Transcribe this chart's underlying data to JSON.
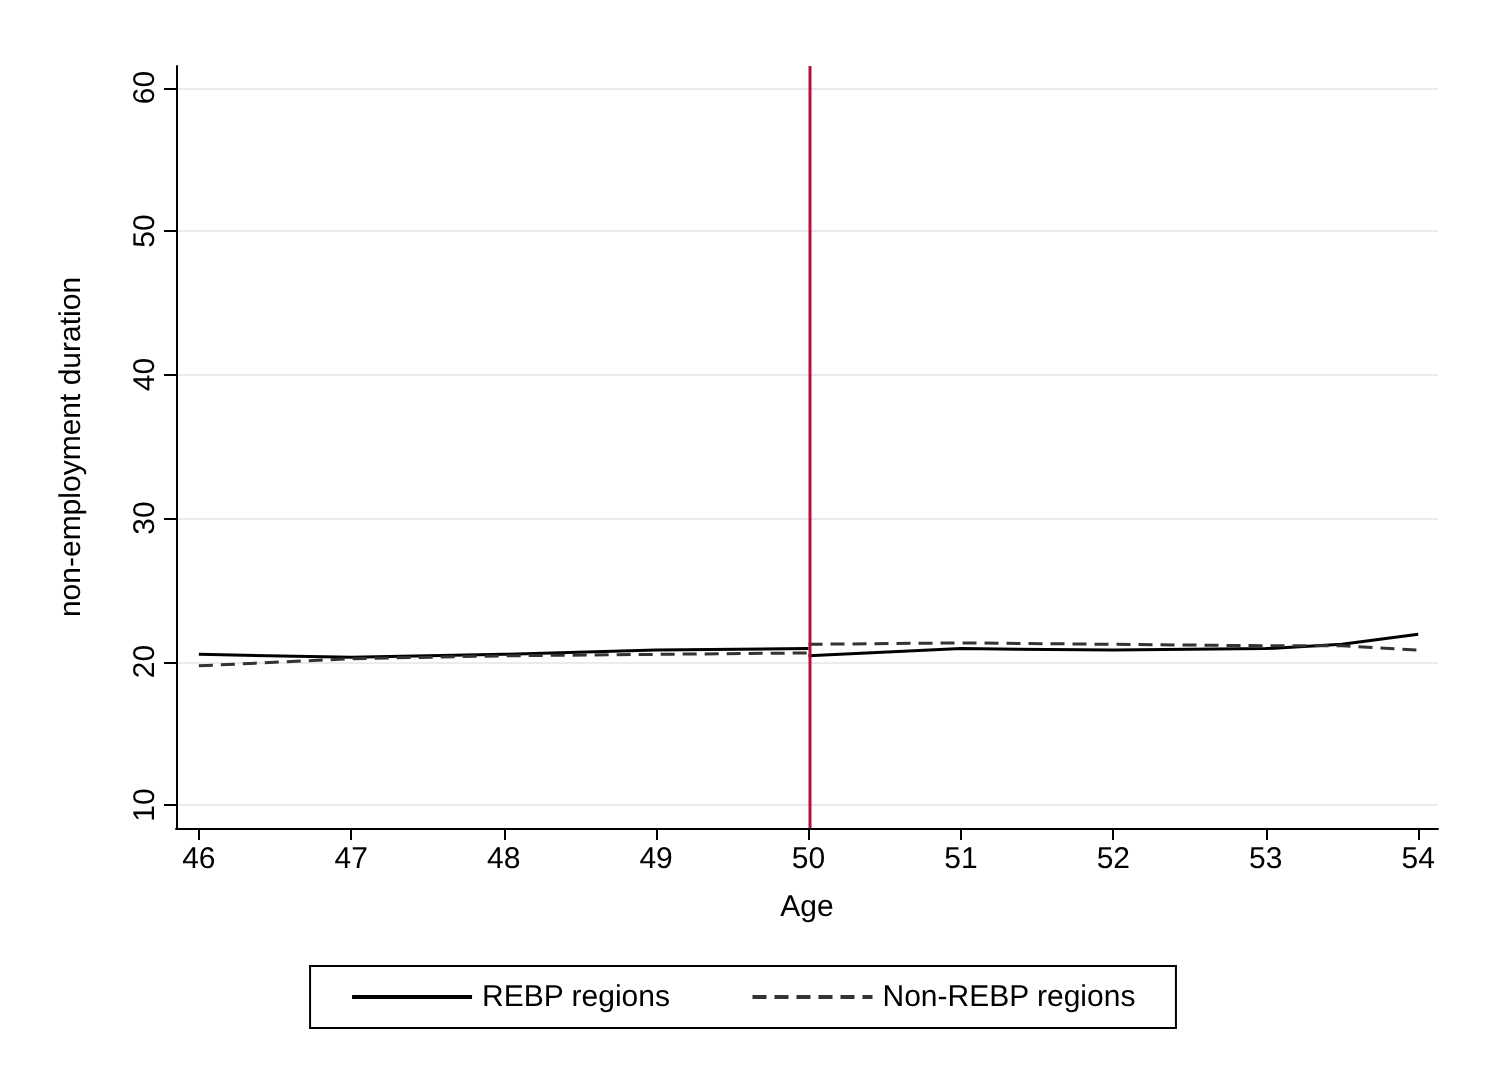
{
  "chart_data": {
    "type": "line",
    "xlabel": "Age",
    "ylabel": "non-employment duration",
    "xlim": [
      45.85,
      54.13
    ],
    "xticks": [
      46,
      47,
      48,
      49,
      50,
      51,
      52,
      53,
      54
    ],
    "ylim": [
      8.4,
      61.5
    ],
    "yticks": [
      10,
      20,
      30,
      40,
      50,
      60
    ],
    "grid": "y",
    "legend": "bottom",
    "series": [
      {
        "name": "REBP regions",
        "color": "#000000",
        "line_style": "solid",
        "x": [
          46,
          47,
          48,
          49,
          50,
          null,
          50,
          51,
          52,
          53,
          53.5,
          54
        ],
        "values": [
          20.5,
          20.3,
          20.5,
          20.8,
          20.9,
          null,
          20.4,
          20.9,
          20.8,
          20.9,
          21.2,
          21.9
        ]
      },
      {
        "name": "Non-REBP regions",
        "color": "#333333",
        "line_style": "dashed",
        "x": [
          46,
          47,
          48,
          49,
          50,
          null,
          50,
          51,
          52,
          53,
          53.5,
          54
        ],
        "values": [
          19.7,
          20.2,
          20.4,
          20.5,
          20.6,
          null,
          21.2,
          21.3,
          21.2,
          21.1,
          21.1,
          20.8
        ]
      }
    ],
    "ref_lines": [
      {
        "axis": "x",
        "value": 50,
        "color": "#b5123a"
      }
    ]
  }
}
